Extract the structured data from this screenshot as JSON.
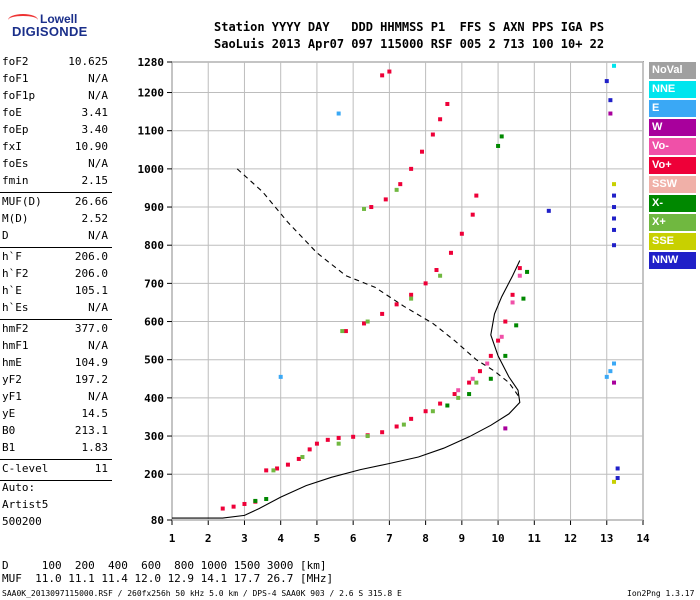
{
  "logo": {
    "line1": "Lowell",
    "line2": "DIGISONDE"
  },
  "header": {
    "line1": "Station YYYY DAY   DDD HHMMSS P1  FFS S AXN PPS IGA PS",
    "line2": "SaoLuis 2013 Apr07 097 115000 RSF 005 2 713 100 10+ 22"
  },
  "params": [
    {
      "group": [
        {
          "label": "foF2",
          "value": "10.625"
        },
        {
          "label": "foF1",
          "value": "N/A"
        },
        {
          "label": "foF1p",
          "value": "N/A"
        },
        {
          "label": "foE",
          "value": "3.41"
        },
        {
          "label": "foEp",
          "value": "3.40"
        },
        {
          "label": "fxI",
          "value": "10.90"
        },
        {
          "label": "foEs",
          "value": "N/A"
        },
        {
          "label": "fmin",
          "value": "2.15"
        }
      ]
    },
    {
      "group": [
        {
          "label": "MUF(D)",
          "value": "26.66"
        },
        {
          "label": "M(D)",
          "value": "2.52"
        },
        {
          "label": "D",
          "value": "N/A"
        }
      ]
    },
    {
      "group": [
        {
          "label": "h`F",
          "value": "206.0"
        },
        {
          "label": "h`F2",
          "value": "206.0"
        },
        {
          "label": "h`E",
          "value": "105.1"
        },
        {
          "label": "h`Es",
          "value": "N/A"
        }
      ]
    },
    {
      "group": [
        {
          "label": "hmF2",
          "value": "377.0"
        },
        {
          "label": "hmF1",
          "value": "N/A"
        },
        {
          "label": "hmE",
          "value": "104.9"
        },
        {
          "label": "yF2",
          "value": "197.2"
        },
        {
          "label": "yF1",
          "value": "N/A"
        },
        {
          "label": "yE",
          "value": "14.5"
        },
        {
          "label": "B0",
          "value": "213.1"
        },
        {
          "label": "B1",
          "value": "1.83"
        }
      ]
    },
    {
      "group": [
        {
          "label": "C-level",
          "value": "11"
        }
      ]
    }
  ],
  "auto": {
    "line1": "Auto:",
    "line2": "Artist5",
    "line3": "500200"
  },
  "legend": [
    {
      "label": "NoVal",
      "color": "#a0a0a0"
    },
    {
      "label": "NNE",
      "color": "#00e5ee"
    },
    {
      "label": "E",
      "color": "#3aa8f5"
    },
    {
      "label": "W",
      "color": "#a8009c"
    },
    {
      "label": "Vo-",
      "color": "#f050a8"
    },
    {
      "label": "Vo+",
      "color": "#ee0038"
    },
    {
      "label": "SSW",
      "color": "#f0b0a8"
    },
    {
      "label": "X-",
      "color": "#008800"
    },
    {
      "label": "X+",
      "color": "#70b840"
    },
    {
      "label": "SSE",
      "color": "#c8d000"
    },
    {
      "label": "NNW",
      "color": "#2020c8"
    }
  ],
  "footer": {
    "line1": "D     100  200  400  600  800 1000 1500 3000 [km]",
    "line2": "MUF  11.0 11.1 11.4 12.0 12.9 14.1 17.7 26.7 [MHz]",
    "line3": "SAA0K_2013097115000.RSF / 260fx256h 50 kHz 5.0 km / DPS-4 SAA0K 903 / 2.6 S 315.8 E",
    "version": "Ion2Png 1.3.17"
  },
  "chart_data": {
    "type": "scatter",
    "xlabel": "",
    "ylabel": "",
    "xlim": [
      1,
      14
    ],
    "ylim": [
      80,
      1280
    ],
    "x_ticks": [
      1,
      2,
      3,
      4,
      5,
      6,
      7,
      8,
      9,
      10,
      11,
      12,
      13,
      14
    ],
    "y_ticks": [
      80,
      200,
      300,
      400,
      500,
      600,
      700,
      800,
      900,
      1000,
      1100,
      1200,
      1280
    ],
    "grid": true,
    "series": [
      {
        "name": "Vo+",
        "color": "#ee0038",
        "points": [
          [
            2.4,
            110
          ],
          [
            2.7,
            115
          ],
          [
            3.0,
            122
          ],
          [
            3.3,
            128
          ],
          [
            3.6,
            210
          ],
          [
            3.9,
            215
          ],
          [
            4.2,
            225
          ],
          [
            4.5,
            240
          ],
          [
            4.8,
            265
          ],
          [
            5.0,
            280
          ],
          [
            5.3,
            290
          ],
          [
            5.6,
            295
          ],
          [
            6.0,
            298
          ],
          [
            6.4,
            302
          ],
          [
            6.8,
            310
          ],
          [
            7.2,
            325
          ],
          [
            7.6,
            345
          ],
          [
            8.0,
            365
          ],
          [
            8.4,
            385
          ],
          [
            8.8,
            410
          ],
          [
            9.2,
            440
          ],
          [
            9.5,
            470
          ],
          [
            9.8,
            510
          ],
          [
            10.0,
            550
          ],
          [
            10.2,
            600
          ],
          [
            10.4,
            670
          ],
          [
            10.6,
            740
          ],
          [
            5.8,
            575
          ],
          [
            6.3,
            595
          ],
          [
            6.8,
            620
          ],
          [
            7.2,
            645
          ],
          [
            7.6,
            670
          ],
          [
            8.0,
            700
          ],
          [
            8.3,
            735
          ],
          [
            8.7,
            780
          ],
          [
            9.0,
            830
          ],
          [
            9.3,
            880
          ],
          [
            9.4,
            930
          ],
          [
            6.5,
            900
          ],
          [
            6.9,
            920
          ],
          [
            7.3,
            960
          ],
          [
            7.6,
            1000
          ],
          [
            7.9,
            1045
          ],
          [
            8.2,
            1090
          ],
          [
            8.4,
            1130
          ],
          [
            8.6,
            1170
          ],
          [
            6.8,
            1245
          ],
          [
            7.0,
            1255
          ]
        ]
      },
      {
        "name": "Vo-",
        "color": "#f050a8",
        "points": [
          [
            8.9,
            420
          ],
          [
            9.3,
            450
          ],
          [
            9.7,
            490
          ],
          [
            10.1,
            560
          ],
          [
            10.4,
            650
          ],
          [
            10.6,
            720
          ]
        ]
      },
      {
        "name": "X+",
        "color": "#70b840",
        "points": [
          [
            3.8,
            210
          ],
          [
            4.6,
            245
          ],
          [
            5.6,
            280
          ],
          [
            6.4,
            300
          ],
          [
            7.4,
            330
          ],
          [
            8.2,
            365
          ],
          [
            8.9,
            400
          ],
          [
            9.4,
            440
          ],
          [
            5.7,
            575
          ],
          [
            6.4,
            600
          ],
          [
            7.6,
            660
          ],
          [
            8.4,
            720
          ],
          [
            6.3,
            895
          ],
          [
            7.2,
            945
          ]
        ]
      },
      {
        "name": "X-",
        "color": "#008800",
        "points": [
          [
            3.3,
            130
          ],
          [
            3.6,
            135
          ],
          [
            8.6,
            380
          ],
          [
            9.2,
            410
          ],
          [
            9.8,
            450
          ],
          [
            10.2,
            510
          ],
          [
            10.5,
            590
          ],
          [
            10.7,
            660
          ],
          [
            10.8,
            730
          ],
          [
            10.0,
            1060
          ],
          [
            10.1,
            1085
          ]
        ]
      },
      {
        "name": "E",
        "color": "#3aa8f5",
        "points": [
          [
            4.0,
            455
          ],
          [
            5.6,
            1145
          ],
          [
            13.0,
            455
          ],
          [
            13.1,
            470
          ],
          [
            13.2,
            490
          ]
        ]
      },
      {
        "name": "NNW",
        "color": "#2020c8",
        "points": [
          [
            13.0,
            1230
          ],
          [
            13.1,
            1180
          ],
          [
            13.2,
            930
          ],
          [
            13.2,
            900
          ],
          [
            13.2,
            870
          ],
          [
            13.2,
            840
          ],
          [
            13.2,
            800
          ],
          [
            13.3,
            215
          ],
          [
            13.3,
            190
          ],
          [
            11.4,
            890
          ]
        ]
      },
      {
        "name": "W",
        "color": "#a8009c",
        "points": [
          [
            13.1,
            1145
          ],
          [
            10.2,
            320
          ],
          [
            13.2,
            440
          ]
        ]
      },
      {
        "name": "NNE",
        "color": "#00e5ee",
        "points": [
          [
            13.2,
            1270
          ]
        ]
      },
      {
        "name": "SSE",
        "color": "#c8d000",
        "points": [
          [
            13.2,
            960
          ],
          [
            13.2,
            180
          ]
        ]
      }
    ],
    "lines": [
      {
        "name": "profile",
        "style": "solid",
        "points": [
          [
            1.0,
            85
          ],
          [
            2.4,
            85
          ],
          [
            3.0,
            92
          ],
          [
            3.4,
            110
          ],
          [
            4.0,
            140
          ],
          [
            4.7,
            170
          ],
          [
            5.4,
            192
          ],
          [
            6.2,
            212
          ],
          [
            7.0,
            228
          ],
          [
            7.8,
            245
          ],
          [
            8.5,
            268
          ],
          [
            9.2,
            298
          ],
          [
            9.8,
            328
          ],
          [
            10.3,
            358
          ],
          [
            10.6,
            388
          ],
          [
            10.55,
            420
          ],
          [
            10.3,
            455
          ],
          [
            10.0,
            510
          ],
          [
            9.8,
            565
          ],
          [
            9.9,
            620
          ],
          [
            10.1,
            665
          ],
          [
            10.4,
            720
          ],
          [
            10.6,
            760
          ]
        ]
      },
      {
        "name": "MUF",
        "style": "dashed",
        "points": [
          [
            2.8,
            1000
          ],
          [
            3.5,
            940
          ],
          [
            4.2,
            860
          ],
          [
            5.0,
            780
          ],
          [
            5.8,
            720
          ],
          [
            6.6,
            690
          ],
          [
            7.4,
            640
          ],
          [
            8.2,
            595
          ],
          [
            8.8,
            550
          ],
          [
            9.4,
            500
          ],
          [
            9.9,
            470
          ],
          [
            10.3,
            440
          ],
          [
            10.6,
            400
          ]
        ]
      }
    ]
  }
}
